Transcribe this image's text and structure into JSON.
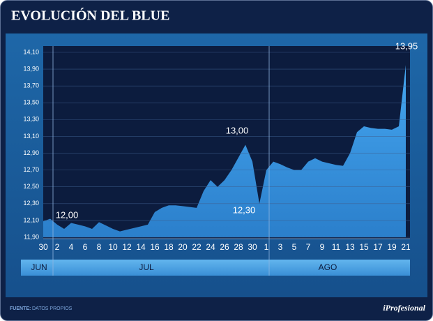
{
  "chart_data": {
    "type": "area",
    "title": "EVOLUCIÓN DEL BLUE",
    "categories": [
      "30",
      null,
      "2",
      null,
      "4",
      null,
      "6",
      null,
      "8",
      null,
      "10",
      null,
      "12",
      null,
      "14",
      null,
      "16",
      null,
      "18",
      null,
      "20",
      null,
      "22",
      null,
      "24",
      null,
      "26",
      null,
      "28",
      null,
      "30",
      null,
      "1",
      null,
      "3",
      null,
      "5",
      null,
      "7",
      null,
      "9",
      null,
      "11",
      null,
      "13",
      null,
      "15",
      null,
      "17",
      null,
      "19",
      null,
      "21"
    ],
    "values": [
      12.09,
      12.12,
      12.05,
      12.0,
      12.07,
      12.05,
      12.03,
      12.0,
      12.08,
      12.04,
      12.0,
      11.97,
      11.99,
      12.01,
      12.03,
      12.05,
      12.2,
      12.25,
      12.28,
      12.28,
      12.27,
      12.26,
      12.25,
      12.45,
      12.58,
      12.5,
      12.58,
      12.7,
      12.85,
      13.0,
      12.8,
      12.3,
      12.7,
      12.8,
      12.77,
      12.73,
      12.7,
      12.7,
      12.8,
      12.84,
      12.8,
      12.78,
      12.76,
      12.75,
      12.9,
      13.15,
      13.22,
      13.2,
      13.19,
      13.19,
      13.18,
      13.22,
      13.95
    ],
    "color": "#3b97e3",
    "ylim": [
      11.9,
      14.1
    ],
    "yticks": [
      {
        "value": 11.9,
        "label": "11,90"
      },
      {
        "value": 12.1,
        "label": "12,10"
      },
      {
        "value": 12.3,
        "label": "12,30"
      },
      {
        "value": 12.5,
        "label": "12,50"
      },
      {
        "value": 12.7,
        "label": "12,70"
      },
      {
        "value": 12.9,
        "label": "12,90"
      },
      {
        "value": 13.1,
        "label": "13,10"
      },
      {
        "value": 13.3,
        "label": "13,30"
      },
      {
        "value": 13.5,
        "label": "13,50"
      },
      {
        "value": 13.7,
        "label": "13,70"
      },
      {
        "value": 13.9,
        "label": "13,90"
      },
      {
        "value": 14.1,
        "label": "14,10"
      }
    ],
    "grid": true,
    "annotations": [
      "12,00",
      "13,00",
      "12,30",
      "13,95"
    ],
    "months": [
      "JUN",
      "JUL",
      "AGO"
    ],
    "source_label": "FUENTE:",
    "source": "DATOS PROPIOS",
    "brand": "iProfesional"
  }
}
